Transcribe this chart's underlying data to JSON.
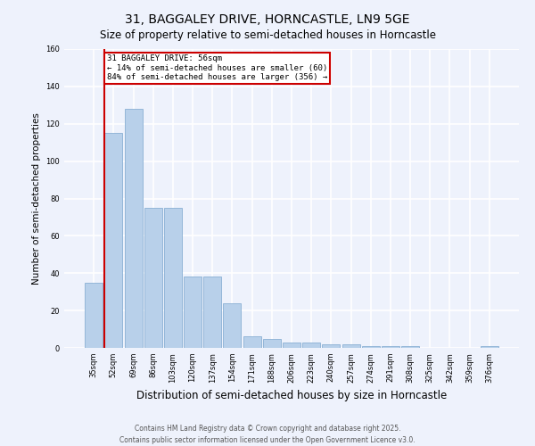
{
  "title": "31, BAGGALEY DRIVE, HORNCASTLE, LN9 5GE",
  "subtitle": "Size of property relative to semi-detached houses in Horncastle",
  "xlabel": "Distribution of semi-detached houses by size in Horncastle",
  "ylabel": "Number of semi-detached properties",
  "categories": [
    "35sqm",
    "52sqm",
    "69sqm",
    "86sqm",
    "103sqm",
    "120sqm",
    "137sqm",
    "154sqm",
    "171sqm",
    "188sqm",
    "206sqm",
    "223sqm",
    "240sqm",
    "257sqm",
    "274sqm",
    "291sqm",
    "308sqm",
    "325sqm",
    "342sqm",
    "359sqm",
    "376sqm"
  ],
  "values": [
    35,
    115,
    128,
    75,
    75,
    38,
    38,
    24,
    6,
    5,
    3,
    3,
    2,
    2,
    1,
    1,
    1,
    0,
    0,
    0,
    1
  ],
  "bar_color": "#b8d0ea",
  "bar_edge_color": "#8ab0d4",
  "subject_label": "31 BAGGALEY DRIVE: 56sqm",
  "annotation_line1": "← 14% of semi-detached houses are smaller (60)",
  "annotation_line2": "84% of semi-detached houses are larger (356) →",
  "annotation_box_color": "#ffffff",
  "annotation_border_color": "#cc0000",
  "vline_x_index": 1,
  "ylim": [
    0,
    160
  ],
  "yticks": [
    0,
    20,
    40,
    60,
    80,
    100,
    120,
    140,
    160
  ],
  "background_color": "#eef2fc",
  "grid_color": "#ffffff",
  "footer_line1": "Contains HM Land Registry data © Crown copyright and database right 2025.",
  "footer_line2": "Contains public sector information licensed under the Open Government Licence v3.0."
}
